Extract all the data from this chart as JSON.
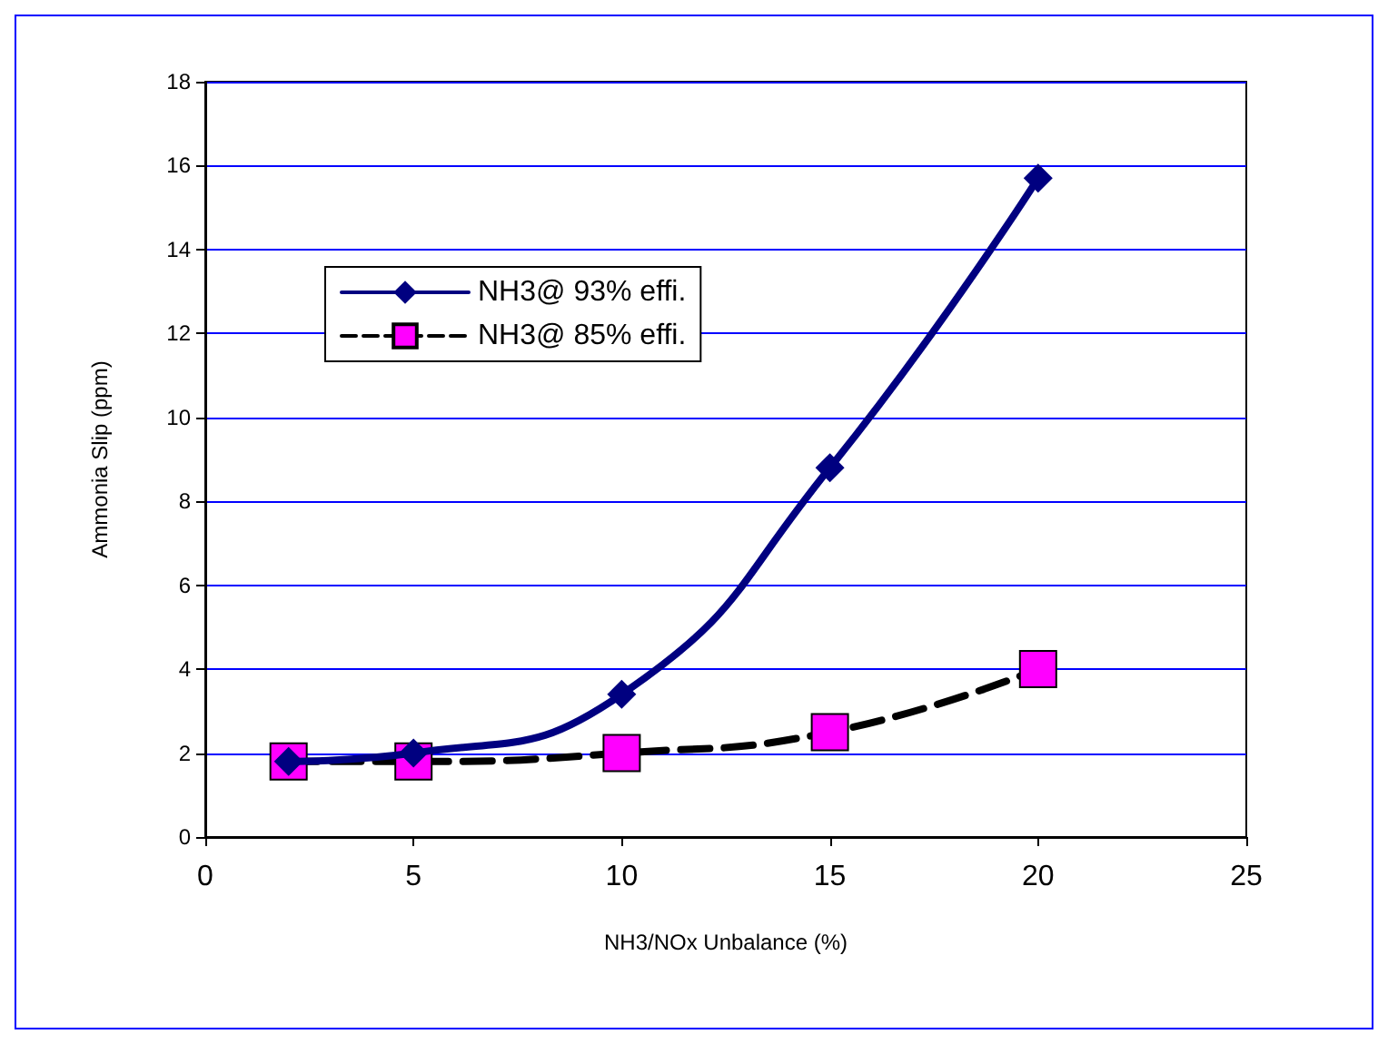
{
  "chart_data": {
    "type": "line",
    "xlabel": "NH3/NOx Unbalance (%)",
    "ylabel": "Ammonia Slip (ppm)",
    "x": [
      2,
      5,
      10,
      15,
      20
    ],
    "series": [
      {
        "name": "NH3@ 93% effi.",
        "color": "#000080",
        "values": [
          1.8,
          2.0,
          3.4,
          8.8,
          15.7
        ],
        "marker": "diamond",
        "line_style": "solid"
      },
      {
        "name": "NH3@ 85% effi.",
        "color": "#ff00ff",
        "values": [
          1.8,
          1.8,
          2.0,
          2.5,
          4.0
        ],
        "marker": "square",
        "line_style": "dashed"
      }
    ],
    "xlim": [
      0,
      25
    ],
    "xticks": [
      0,
      5,
      10,
      15,
      20,
      25
    ],
    "ylim": [
      0,
      18
    ],
    "yticks": [
      0,
      2,
      4,
      6,
      8,
      10,
      12,
      14,
      16,
      18
    ],
    "grid": "y",
    "legend": "top left"
  }
}
